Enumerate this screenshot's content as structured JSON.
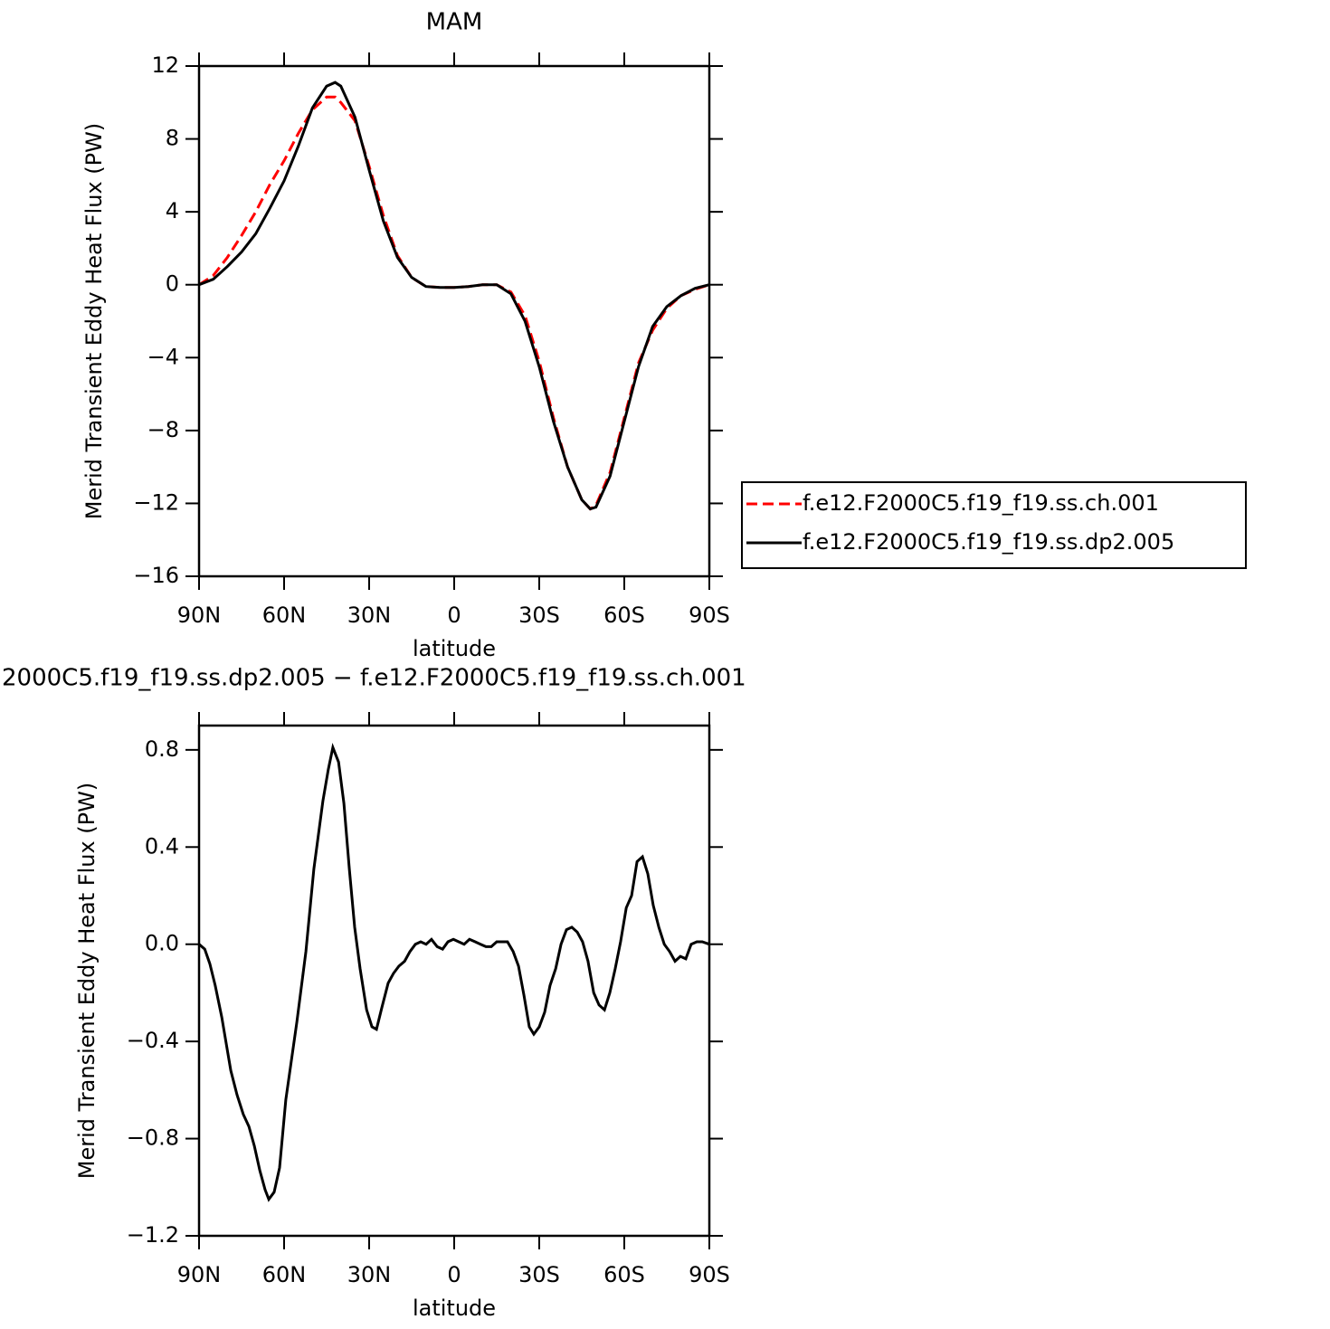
{
  "chart_data": [
    {
      "type": "line",
      "title": "MAM",
      "xlabel": "latitude",
      "ylabel": "Merid Transient Eddy Heat Flux (PW)",
      "x": [
        90,
        85,
        80,
        75,
        70,
        65,
        60,
        55,
        50,
        45,
        42,
        40,
        35,
        30,
        25,
        20,
        15,
        10,
        5,
        0,
        -5,
        -10,
        -15,
        -20,
        -25,
        -30,
        -35,
        -40,
        -45,
        -48,
        -50,
        -55,
        -60,
        -65,
        -70,
        -75,
        -80,
        -85,
        -90
      ],
      "series": [
        {
          "name": "f.e12.F2000C5.f19_f19.ss.ch.001",
          "color": "#ff0000",
          "line_style": "dashed",
          "values": [
            0,
            0.5,
            1.5,
            2.7,
            4.0,
            5.5,
            6.8,
            8.3,
            9.6,
            10.3,
            10.3,
            10.0,
            9.0,
            6.5,
            3.8,
            1.6,
            0.4,
            -0.1,
            -0.15,
            -0.15,
            -0.1,
            0,
            0,
            -0.4,
            -1.7,
            -4.2,
            -7.3,
            -10.0,
            -11.8,
            -12.3,
            -12.1,
            -10.3,
            -7.3,
            -4.3,
            -2.5,
            -1.3,
            -0.6,
            -0.25,
            0
          ]
        },
        {
          "name": "f.e12.F2000C5.f19_f19.ss.dp2.005",
          "color": "#000000",
          "line_style": "solid",
          "values": [
            0,
            0.3,
            1.0,
            1.8,
            2.8,
            4.2,
            5.7,
            7.6,
            9.7,
            10.9,
            11.1,
            10.9,
            9.2,
            6.3,
            3.5,
            1.5,
            0.4,
            -0.1,
            -0.15,
            -0.15,
            -0.1,
            0,
            0,
            -0.5,
            -2.0,
            -4.5,
            -7.5,
            -10.0,
            -11.8,
            -12.3,
            -12.2,
            -10.5,
            -7.5,
            -4.5,
            -2.3,
            -1.2,
            -0.6,
            -0.2,
            0
          ]
        }
      ],
      "xlim": [
        90,
        -90
      ],
      "ylim": [
        -16,
        12
      ],
      "xticks": [
        {
          "value": 90,
          "label": "90N"
        },
        {
          "value": 60,
          "label": "60N"
        },
        {
          "value": 30,
          "label": "30N"
        },
        0,
        {
          "value": -30,
          "label": "30S"
        },
        {
          "value": -60,
          "label": "60S"
        },
        {
          "value": -90,
          "label": "90S"
        }
      ],
      "yticks": [
        {
          "value": -16,
          "label": "−16"
        },
        {
          "value": -12,
          "label": "−12"
        },
        {
          "value": -8,
          "label": "−8"
        },
        {
          "value": -4,
          "label": "−4"
        },
        0,
        4,
        8,
        12
      ],
      "legend": "right"
    },
    {
      "type": "line",
      "title": "2000C5.f19_f19.ss.dp2.005 − f.e12.F2000C5.f19_f19.ss.ch.001",
      "xlabel": "latitude",
      "ylabel": "Merid Transient Eddy Heat Flux (PW)",
      "x": [
        90,
        88,
        86.2,
        84.3,
        82,
        78.8,
        76.6,
        74.4,
        72.4,
        70.5,
        68.6,
        66.7,
        65.4,
        63.5,
        61.6,
        59.4,
        55.5,
        52.3,
        49.5,
        46.3,
        44.4,
        42.8,
        40.8,
        38.9,
        37,
        35.1,
        33.2,
        30.9,
        29,
        27.4,
        25.5,
        23.3,
        21.4,
        19.5,
        17.5,
        15.6,
        13.7,
        11.8,
        9.9,
        8,
        6,
        4.1,
        2.2,
        0.3,
        -1.6,
        -3.5,
        -5.4,
        -7.4,
        -9.3,
        -11.2,
        -13.1,
        -15,
        -16.9,
        -18.8,
        -20.8,
        -22.7,
        -24.6,
        -26.5,
        -28.1,
        -30,
        -31.9,
        -33.8,
        -35.8,
        -37.7,
        -39.6,
        -41.5,
        -43.4,
        -45.3,
        -47.2,
        -49.2,
        -51.1,
        -53,
        -54.9,
        -56.8,
        -58.7,
        -60.7,
        -62.6,
        -64.5,
        -66.4,
        -68.3,
        -70.2,
        -72.2,
        -74.1,
        -76,
        -77.9,
        -79.8,
        -81.7,
        -83.6,
        -85.6,
        -87.5,
        -90
      ],
      "series": [
        {
          "color": "#000000",
          "line_style": "solid",
          "values": [
            0,
            -0.02,
            -0.08,
            -0.17,
            -0.3,
            -0.52,
            -0.62,
            -0.7,
            -0.75,
            -0.83,
            -0.93,
            -1.01,
            -1.05,
            -1.02,
            -0.92,
            -0.64,
            -0.32,
            -0.03,
            0.31,
            0.59,
            0.72,
            0.81,
            0.75,
            0.58,
            0.31,
            0.07,
            -0.1,
            -0.27,
            -0.34,
            -0.35,
            -0.26,
            -0.16,
            -0.12,
            -0.09,
            -0.07,
            -0.03,
            0,
            0.01,
            0,
            0.02,
            -0.01,
            -0.02,
            0.01,
            0.02,
            0.01,
            0,
            0.02,
            0.01,
            0,
            -0.01,
            -0.01,
            0.01,
            0.01,
            0.01,
            -0.03,
            -0.09,
            -0.21,
            -0.34,
            -0.37,
            -0.34,
            -0.28,
            -0.17,
            -0.1,
            0,
            0.06,
            0.07,
            0.05,
            0.01,
            -0.07,
            -0.2,
            -0.25,
            -0.27,
            -0.2,
            -0.1,
            0.01,
            0.15,
            0.2,
            0.34,
            0.36,
            0.29,
            0.16,
            0.07,
            0,
            -0.03,
            -0.07,
            -0.05,
            -0.06,
            0,
            0.01,
            0.01,
            0
          ]
        }
      ],
      "xlim": [
        90,
        -90
      ],
      "ylim": [
        -1.2,
        0.9
      ],
      "xticks": [
        {
          "value": 90,
          "label": "90N"
        },
        {
          "value": 60,
          "label": "60N"
        },
        {
          "value": 30,
          "label": "30N"
        },
        0,
        {
          "value": -30,
          "label": "30S"
        },
        {
          "value": -60,
          "label": "60S"
        },
        {
          "value": -90,
          "label": "90S"
        }
      ],
      "yticks": [
        {
          "value": -1.2,
          "label": "−1.2"
        },
        {
          "value": -0.8,
          "label": "−0.8"
        },
        {
          "value": -0.4,
          "label": "−0.4"
        },
        {
          "value": 0,
          "label": "0.0"
        },
        0.4,
        0.8
      ]
    }
  ]
}
